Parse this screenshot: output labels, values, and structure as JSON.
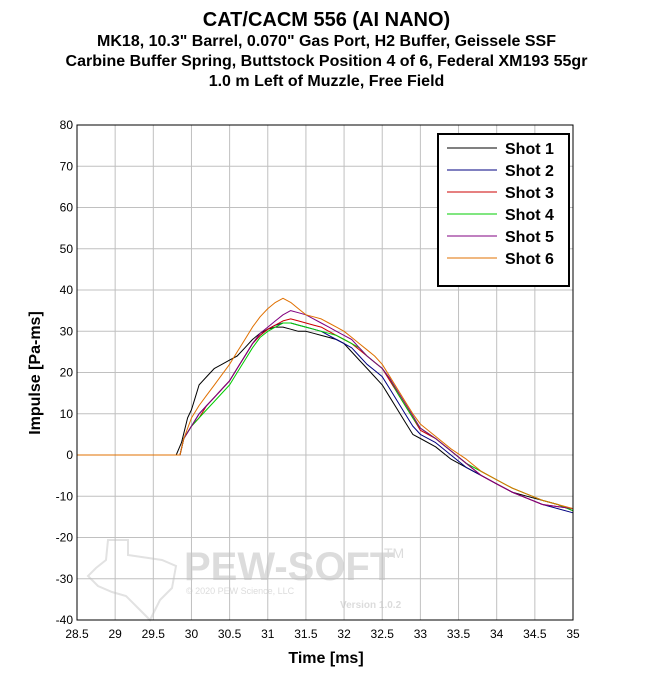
{
  "chart_data": {
    "type": "line",
    "title": "CAT/CACM 556 (AI NANO)",
    "subtitle_lines": [
      "MK18, 10.3\" Barrel, 0.070\" Gas Port, H2 Buffer, Geissele SSF",
      "Carbine Buffer Spring, Buttstock Position 4 of 6, Federal XM193 55gr",
      "1.0 m Left of Muzzle, Free Field"
    ],
    "xlabel": "Time [ms]",
    "ylabel": "Impulse [Pa-ms]",
    "xlim": [
      28.5,
      35
    ],
    "ylim": [
      -40,
      80
    ],
    "xticks": [
      "28.5",
      "29",
      "29.5",
      "30",
      "30.5",
      "31",
      "31.5",
      "32",
      "32.5",
      "33",
      "33.5",
      "34",
      "34.5",
      "35"
    ],
    "yticks": [
      "-40",
      "-30",
      "-20",
      "-10",
      "0",
      "10",
      "20",
      "30",
      "40",
      "50",
      "60",
      "70",
      "80"
    ],
    "grid": true,
    "legend_position": "top-right",
    "series": [
      {
        "name": "Shot 1",
        "color": "#000000",
        "x": [
          28.5,
          29.8,
          29.87,
          29.95,
          30.0,
          30.05,
          30.1,
          30.2,
          30.3,
          30.4,
          30.5,
          30.6,
          30.7,
          30.8,
          30.9,
          31.0,
          31.1,
          31.2,
          31.3,
          31.4,
          31.5,
          31.6,
          31.7,
          31.8,
          31.9,
          32.0,
          32.1,
          32.2,
          32.3,
          32.4,
          32.5,
          32.6,
          32.7,
          32.8,
          32.9,
          33.0,
          33.2,
          33.4,
          33.6,
          33.8,
          34.0,
          34.2,
          34.4,
          34.6,
          34.8,
          35.0
        ],
        "y": [
          0,
          0,
          3,
          9,
          11,
          14,
          17,
          19,
          21,
          22,
          23,
          24,
          26,
          28,
          29.5,
          30.5,
          31,
          31,
          30.5,
          30,
          30,
          29.5,
          29,
          28.5,
          28,
          27,
          25,
          23,
          21,
          19,
          17,
          14,
          11,
          8,
          5,
          4,
          2,
          -1,
          -3,
          -5,
          -7,
          -9,
          -10,
          -11,
          -12,
          -13.5
        ]
      },
      {
        "name": "Shot 2",
        "color": "#000080",
        "x": [
          28.5,
          29.85,
          29.9,
          30.0,
          30.1,
          30.2,
          30.3,
          30.4,
          30.5,
          30.6,
          30.7,
          30.8,
          30.9,
          31.0,
          31.1,
          31.2,
          31.3,
          31.4,
          31.5,
          31.6,
          31.7,
          31.8,
          31.9,
          32.0,
          32.1,
          32.2,
          32.3,
          32.4,
          32.5,
          32.6,
          32.7,
          32.8,
          32.9,
          33.0,
          33.2,
          33.4,
          33.6,
          33.8,
          34.0,
          34.2,
          34.4,
          34.6,
          34.8,
          35.0
        ],
        "y": [
          0,
          0,
          4,
          7,
          10,
          12,
          14,
          16,
          18,
          21,
          24,
          27,
          29,
          30.5,
          31.5,
          32,
          32,
          31.5,
          31,
          30.5,
          30,
          29,
          28,
          27,
          26,
          24,
          22,
          20.5,
          19,
          16,
          13,
          10,
          7,
          5,
          3,
          0,
          -3,
          -5,
          -7,
          -9,
          -10.5,
          -12,
          -13,
          -14
        ]
      },
      {
        "name": "Shot 3",
        "color": "#cc0000",
        "x": [
          28.5,
          29.85,
          29.9,
          30.0,
          30.1,
          30.2,
          30.3,
          30.4,
          30.5,
          30.6,
          30.7,
          30.8,
          30.9,
          31.0,
          31.1,
          31.2,
          31.3,
          31.4,
          31.5,
          31.6,
          31.7,
          31.8,
          31.9,
          32.0,
          32.1,
          32.2,
          32.3,
          32.4,
          32.5,
          32.6,
          32.7,
          32.8,
          32.9,
          33.0,
          33.2,
          33.4,
          33.6,
          33.8,
          34.0,
          34.2,
          34.4,
          34.6,
          34.8,
          35.0
        ],
        "y": [
          0,
          0,
          4,
          7,
          9,
          12,
          14,
          16,
          18,
          21,
          24,
          27,
          29,
          30.5,
          31.5,
          32.5,
          33,
          32.5,
          32,
          31.5,
          31,
          30,
          29,
          28,
          27,
          25.5,
          24,
          22.5,
          21,
          18,
          15,
          12,
          9,
          6,
          4,
          1,
          -2,
          -5,
          -7,
          -9,
          -10.5,
          -12,
          -12.5,
          -13
        ]
      },
      {
        "name": "Shot 4",
        "color": "#00cc00",
        "x": [
          28.5,
          29.85,
          29.9,
          30.0,
          30.1,
          30.2,
          30.3,
          30.4,
          30.5,
          30.6,
          30.7,
          30.8,
          30.9,
          31.0,
          31.1,
          31.2,
          31.3,
          31.4,
          31.5,
          31.6,
          31.7,
          31.8,
          31.9,
          32.0,
          32.1,
          32.2,
          32.3,
          32.4,
          32.5,
          32.6,
          32.7,
          32.8,
          32.9,
          33.0,
          33.2,
          33.4,
          33.6,
          33.8,
          34.0,
          34.2,
          34.4,
          34.6,
          34.8,
          35.0
        ],
        "y": [
          0,
          0,
          4,
          7,
          9,
          11,
          13,
          15,
          17,
          20,
          23,
          26,
          28.5,
          30,
          31,
          32,
          32,
          31.5,
          31,
          30.5,
          30,
          29.5,
          29,
          28,
          27,
          26,
          24,
          22.5,
          21,
          18.5,
          15,
          12,
          9,
          6.5,
          4,
          1,
          -2,
          -4,
          -6,
          -8,
          -9.5,
          -11,
          -12,
          -13.5
        ]
      },
      {
        "name": "Shot 5",
        "color": "#800080",
        "x": [
          28.5,
          29.85,
          29.9,
          30.0,
          30.1,
          30.2,
          30.3,
          30.4,
          30.5,
          30.6,
          30.7,
          30.8,
          30.9,
          31.0,
          31.1,
          31.2,
          31.3,
          31.4,
          31.5,
          31.6,
          31.7,
          31.8,
          31.9,
          32.0,
          32.1,
          32.2,
          32.3,
          32.4,
          32.5,
          32.6,
          32.7,
          32.8,
          32.9,
          33.0,
          33.2,
          33.4,
          33.6,
          33.8,
          34.0,
          34.2,
          34.4,
          34.6,
          34.8,
          35.0
        ],
        "y": [
          0,
          0,
          4,
          7,
          10,
          12,
          14,
          16,
          18,
          21,
          24,
          27,
          29.5,
          31,
          32.5,
          34,
          35,
          34.5,
          34,
          33,
          32,
          31,
          30,
          29,
          28,
          26,
          24,
          22.5,
          21,
          18.5,
          15.5,
          12.5,
          9.5,
          6.5,
          4,
          1,
          -2,
          -5,
          -7,
          -9,
          -10.5,
          -12,
          -12.5,
          -13
        ]
      },
      {
        "name": "Shot 6",
        "color": "#e07000",
        "x": [
          28.5,
          29.85,
          29.9,
          30.0,
          30.1,
          30.2,
          30.3,
          30.4,
          30.5,
          30.6,
          30.7,
          30.8,
          30.9,
          31.0,
          31.1,
          31.2,
          31.3,
          31.4,
          31.5,
          31.6,
          31.7,
          31.8,
          31.9,
          32.0,
          32.1,
          32.2,
          32.3,
          32.4,
          32.5,
          32.6,
          32.7,
          32.8,
          32.9,
          33.0,
          33.2,
          33.4,
          33.6,
          33.8,
          34.0,
          34.2,
          34.4,
          34.6,
          34.8,
          35.0
        ],
        "y": [
          0,
          0,
          4,
          9,
          12,
          14.5,
          17,
          19.5,
          22,
          25,
          28,
          31,
          33.5,
          35.5,
          37,
          38,
          37,
          35.5,
          34,
          33.5,
          33,
          32,
          31,
          30,
          28.5,
          27,
          25.5,
          24,
          22,
          19,
          16,
          13,
          10,
          7.5,
          4.5,
          1.5,
          -1,
          -4,
          -6,
          -8,
          -9.5,
          -11,
          -12,
          -13
        ]
      }
    ]
  },
  "watermark": {
    "brand": "PEW-SOFT",
    "trademark": "TM",
    "copyright": "© 2020 PEW Science, LLC",
    "version": "Version 1.0.2"
  }
}
